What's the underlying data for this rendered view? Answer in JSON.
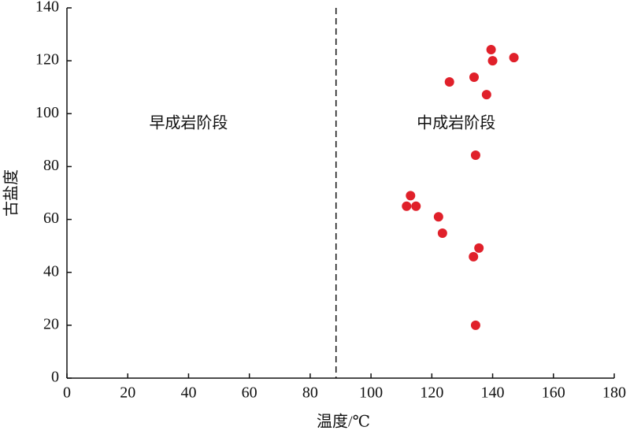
{
  "chart_data": {
    "type": "scatter",
    "x_label": "温度/℃",
    "y_label": "古盐度",
    "annotations": [
      {
        "text": "早成岩阶段",
        "x": 40,
        "y": 96
      },
      {
        "text": "中成岩阶段",
        "x": 128,
        "y": 96
      }
    ],
    "divider_x": 88.5,
    "color": "#e0202a",
    "x": [
      134.4,
      133.7,
      135.5,
      123.5,
      122.2,
      111.7,
      114.8,
      113,
      134.4,
      125.8,
      133.9,
      138,
      139.5,
      140,
      147
    ],
    "values": [
      20,
      45.9,
      49.2,
      54.8,
      61,
      65,
      65,
      69,
      84.3,
      112,
      113.8,
      107.2,
      124.2,
      120,
      121.2
    ],
    "xlim": [
      0,
      180
    ],
    "xticks": [
      0,
      20,
      40,
      60,
      80,
      100,
      120,
      140,
      160,
      180
    ],
    "ylim": [
      0,
      140
    ],
    "yticks": [
      0,
      20,
      40,
      60,
      80,
      100,
      120,
      140
    ]
  }
}
